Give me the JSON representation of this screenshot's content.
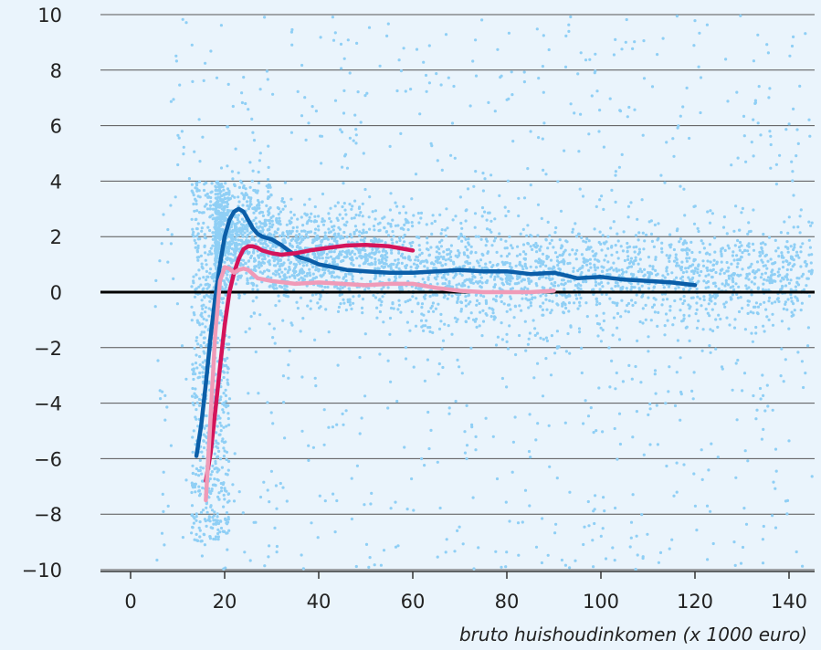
{
  "chart_data": {
    "type": "scatter",
    "title": "",
    "xlabel": "bruto huishoudinkomen (x 1000 euro)",
    "ylabel": "",
    "xlim": [
      -6,
      145
    ],
    "ylim": [
      -10,
      10
    ],
    "x_ticks": [
      "0",
      "20",
      "40",
      "60",
      "80",
      "100",
      "120",
      "140"
    ],
    "y_ticks": [
      "10",
      "8",
      "6",
      "4",
      "2",
      "0",
      "−2",
      "−4",
      "−6",
      "−8",
      "−10"
    ],
    "grid": "horizontal",
    "zero_line": true,
    "colors": {
      "background": "#eaf4fc",
      "points": "#8fcff5",
      "grid": "#555555",
      "zero_line": "#000000"
    },
    "series": [
      {
        "kind": "line",
        "color": "#0b5ea8",
        "x": [
          14,
          15,
          16,
          17,
          18,
          19,
          20,
          21,
          22,
          23,
          24,
          25,
          26,
          27,
          28,
          29,
          30,
          32,
          34,
          36,
          38,
          40,
          43,
          46,
          50,
          55,
          60,
          65,
          70,
          75,
          80,
          85,
          90,
          95,
          100,
          105,
          110,
          115,
          120
        ],
        "y": [
          -5.9,
          -4.8,
          -3.3,
          -1.6,
          -0.2,
          1.0,
          2.0,
          2.6,
          2.9,
          3.0,
          2.9,
          2.6,
          2.3,
          2.1,
          2.0,
          1.95,
          1.9,
          1.7,
          1.45,
          1.25,
          1.15,
          1.0,
          0.9,
          0.8,
          0.75,
          0.7,
          0.7,
          0.75,
          0.8,
          0.75,
          0.75,
          0.65,
          0.7,
          0.5,
          0.55,
          0.45,
          0.4,
          0.35,
          0.25
        ]
      },
      {
        "kind": "line",
        "color": "#d4145a",
        "x": [
          16,
          17,
          18,
          19,
          20,
          21,
          22,
          23,
          24,
          25,
          26,
          27,
          28,
          30,
          32,
          35,
          38,
          40,
          43,
          46,
          50,
          55,
          60
        ],
        "y": [
          -6.8,
          -5.8,
          -4.3,
          -2.7,
          -1.2,
          0.0,
          0.7,
          1.2,
          1.55,
          1.65,
          1.65,
          1.6,
          1.5,
          1.4,
          1.35,
          1.4,
          1.5,
          1.55,
          1.62,
          1.68,
          1.7,
          1.65,
          1.5
        ]
      },
      {
        "kind": "line",
        "color": "#f09bb8",
        "x": [
          16,
          17,
          18,
          19,
          20,
          21,
          22,
          23,
          24,
          25,
          27,
          30,
          35,
          40,
          45,
          50,
          55,
          60,
          65,
          70,
          75,
          80,
          85,
          90
        ],
        "y": [
          -7.5,
          -4.5,
          -1.5,
          0.4,
          0.9,
          0.85,
          0.7,
          0.8,
          0.85,
          0.8,
          0.5,
          0.4,
          0.3,
          0.35,
          0.3,
          0.25,
          0.3,
          0.3,
          0.15,
          0.05,
          0.0,
          0.0,
          0.0,
          0.05
        ]
      }
    ]
  }
}
